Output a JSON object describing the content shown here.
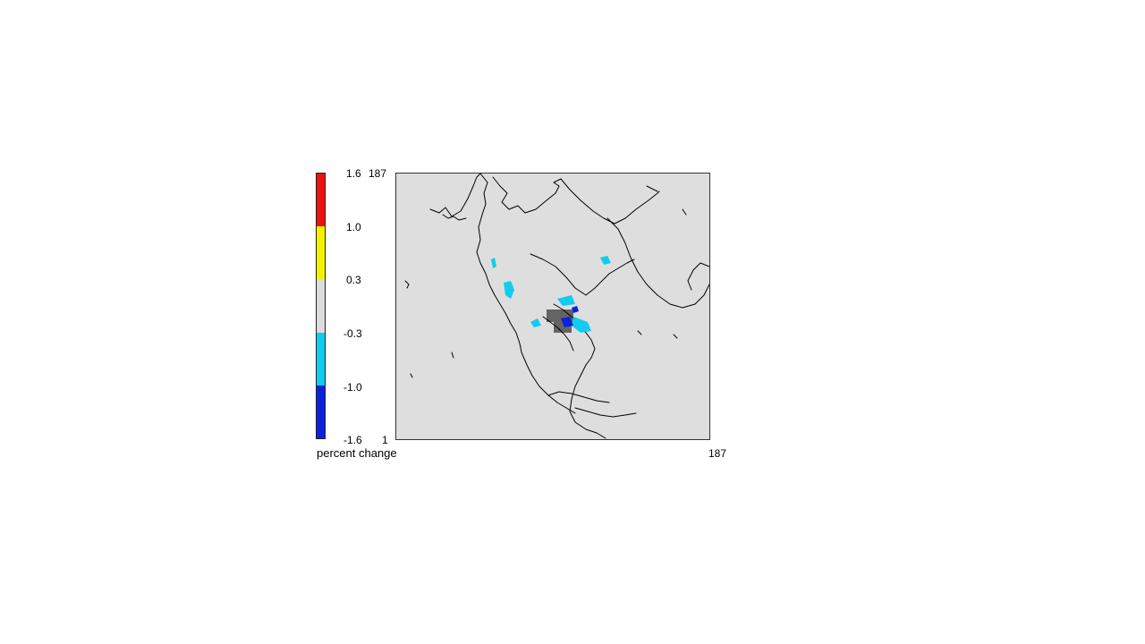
{
  "colorbar": {
    "label": "percent change",
    "ticks": [
      "1.6",
      "1.0",
      "0.3",
      "-0.3",
      "-1.0",
      "-1.6"
    ],
    "segments": [
      {
        "name": "1.0 to 1.6",
        "color": "#ee1111"
      },
      {
        "name": "0.3 to 1.0",
        "color": "#f2f200"
      },
      {
        "name": "-0.3 to 0.3",
        "color": "#dcdcdc"
      },
      {
        "name": "-1.0 to -0.3",
        "color": "#11ccee"
      },
      {
        "name": "-1.6 to -1.0",
        "color": "#0b22dd"
      }
    ]
  },
  "map": {
    "background_color": "#dedede",
    "coastline_color": "#000000",
    "y_axis": {
      "top": "187",
      "bottom": "1"
    },
    "x_axis": {
      "right": "187"
    }
  }
}
